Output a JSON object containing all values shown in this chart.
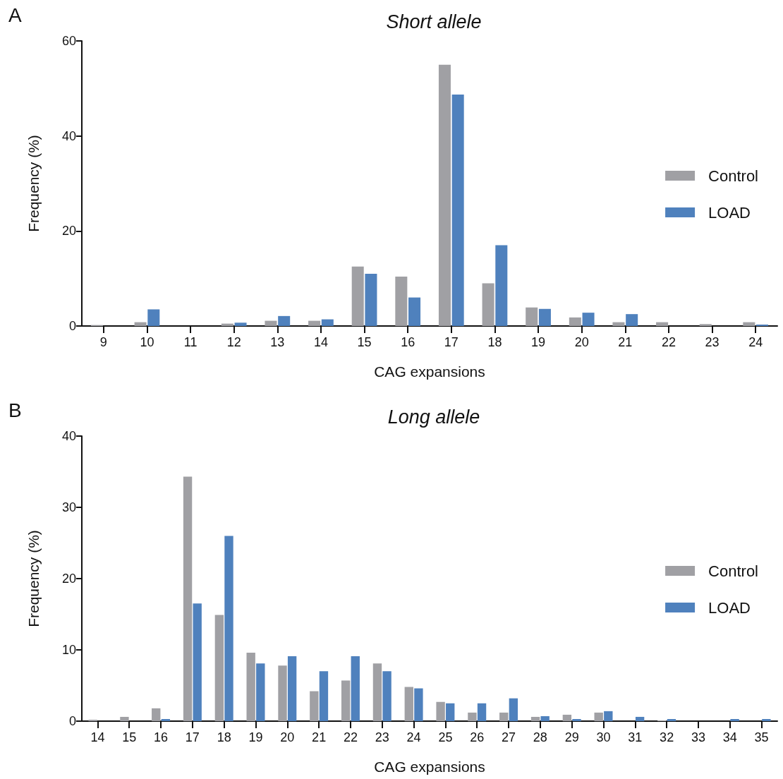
{
  "chart_data": [
    {
      "type": "bar",
      "title": "Short allele",
      "xlabel": "CAG expansions",
      "ylabel": "Frequency (%)",
      "annotations": [
        "A"
      ],
      "categories": [
        "9",
        "10",
        "11",
        "12",
        "13",
        "14",
        "15",
        "16",
        "17",
        "18",
        "19",
        "20",
        "21",
        "22",
        "23",
        "24"
      ],
      "series": [
        {
          "name": "Control",
          "color": "#a0a0a4",
          "values": [
            0.2,
            0.8,
            0,
            0.5,
            1.1,
            1.1,
            12.5,
            10.4,
            55,
            9,
            3.9,
            1.8,
            0.8,
            0.8,
            0.4,
            0.8
          ]
        },
        {
          "name": "LOAD",
          "color": "#4f81bd",
          "values": [
            0,
            3.5,
            0,
            0.7,
            2.1,
            1.4,
            11,
            6,
            48.7,
            17,
            3.6,
            2.8,
            2.5,
            0,
            0,
            0.3
          ]
        }
      ],
      "ylim": [
        0,
        60
      ],
      "yticks": [
        0,
        20,
        40,
        60
      ],
      "grid": false,
      "legend": "right"
    },
    {
      "type": "bar",
      "title": "Long allele",
      "xlabel": "CAG expansions",
      "ylabel": "Frequency (%)",
      "annotations": [
        "B"
      ],
      "categories": [
        "14",
        "15",
        "16",
        "17",
        "18",
        "19",
        "20",
        "21",
        "22",
        "23",
        "24",
        "25",
        "26",
        "27",
        "28",
        "29",
        "30",
        "31",
        "32",
        "33",
        "34",
        "35"
      ],
      "series": [
        {
          "name": "Control",
          "color": "#a0a0a4",
          "values": [
            0.2,
            0.6,
            1.8,
            34.3,
            14.9,
            9.6,
            7.8,
            4.2,
            5.7,
            8.1,
            4.8,
            2.7,
            1.2,
            1.2,
            0.6,
            0.9,
            1.2,
            0,
            0.1,
            0,
            0,
            0
          ]
        },
        {
          "name": "LOAD",
          "color": "#4f81bd",
          "values": [
            0,
            0,
            0.3,
            16.5,
            26,
            8.1,
            9.1,
            7,
            9.1,
            7,
            4.6,
            2.5,
            2.5,
            3.2,
            0.7,
            0.3,
            1.4,
            0.6,
            0.3,
            0,
            0.3,
            0.3
          ]
        }
      ],
      "ylim": [
        0,
        40
      ],
      "yticks": [
        0,
        10,
        20,
        30,
        40
      ],
      "grid": false,
      "legend": "right"
    }
  ]
}
